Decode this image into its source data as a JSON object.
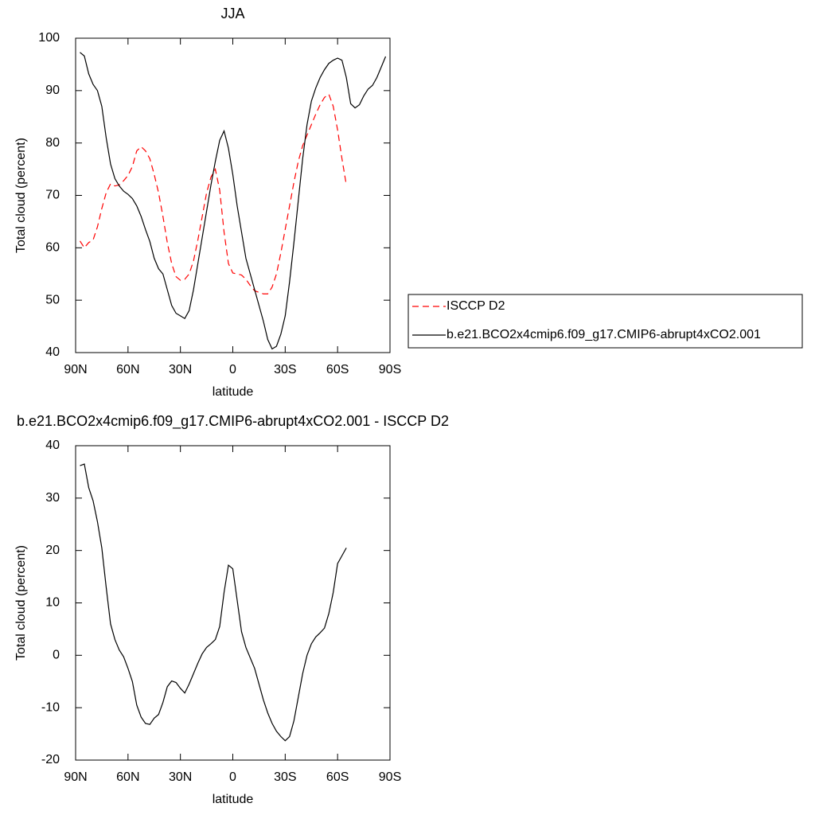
{
  "chart_data": [
    {
      "type": "line",
      "title": "JJA",
      "x_label": "latitude",
      "y_label": "Total cloud (percent)",
      "xlim": [
        90,
        -90
      ],
      "xticks": [
        {
          "value": 90,
          "label": "90N"
        },
        {
          "value": 60,
          "label": "60N"
        },
        {
          "value": 30,
          "label": "30N"
        },
        0,
        {
          "value": -30,
          "label": "30S"
        },
        {
          "value": -60,
          "label": "60S"
        },
        {
          "value": -90,
          "label": "90S"
        }
      ],
      "ylim": [
        40,
        100
      ],
      "yticks": [
        40,
        50,
        60,
        70,
        80,
        90,
        100
      ],
      "legend": "right",
      "series": [
        {
          "name": "ISCCP D2",
          "color": "#ff0000",
          "dashed": true,
          "x": [
            87.5,
            85,
            82.5,
            80,
            77.5,
            75,
            72.5,
            70,
            67.5,
            65,
            62.5,
            60,
            57.5,
            55,
            52.5,
            50,
            47.5,
            45,
            42.5,
            40,
            37.5,
            35,
            32.5,
            30,
            27.5,
            25,
            22.5,
            20,
            17.5,
            15,
            12.5,
            10,
            7.5,
            5,
            2.5,
            0,
            -2.5,
            -5,
            -7.5,
            -10,
            -12.5,
            -15,
            -17.5,
            -20,
            -22.5,
            -25,
            -27.5,
            -30,
            -32.5,
            -35,
            -37.5,
            -40,
            -42.5,
            -45,
            -47.5,
            -50,
            -52.5,
            -55,
            -57.5,
            -60,
            -62.5,
            -65
          ],
          "values": [
            61.3,
            60,
            61,
            61.5,
            64,
            67.5,
            70.5,
            72.2,
            71.8,
            72,
            72.8,
            73.8,
            75.5,
            78.5,
            79.3,
            78.5,
            77,
            74,
            70.5,
            66,
            61,
            57,
            54.5,
            53.8,
            54,
            55,
            57.5,
            61.5,
            66,
            70.5,
            73.5,
            75,
            71,
            63,
            57,
            55.2,
            55,
            54.8,
            54,
            52.8,
            51.8,
            51.5,
            51.2,
            51.2,
            52.5,
            55,
            59,
            63.5,
            68,
            72.5,
            76.5,
            79.5,
            81.5,
            83.5,
            85.5,
            87.3,
            88.7,
            89.3,
            87,
            82.5,
            77,
            72
          ]
        },
        {
          "name": "b.e21.BCO2x4cmip6.f09_g17.CMIP6-abrupt4xCO2.001",
          "color": "#000000",
          "dashed": false,
          "x": [
            87.5,
            85,
            82.5,
            80,
            77.5,
            75,
            72.5,
            70,
            67.5,
            65,
            62.5,
            60,
            57.5,
            55,
            52.5,
            50,
            47.5,
            45,
            42.5,
            40,
            37.5,
            35,
            32.5,
            30,
            27.5,
            25,
            22.5,
            20,
            17.5,
            15,
            12.5,
            10,
            7.5,
            5,
            2.5,
            0,
            -2.5,
            -5,
            -7.5,
            -10,
            -12.5,
            -15,
            -17.5,
            -20,
            -22.5,
            -25,
            -27.5,
            -30,
            -32.5,
            -35,
            -37.5,
            -40,
            -42.5,
            -45,
            -47.5,
            -50,
            -52.5,
            -55,
            -57.5,
            -60,
            -62.5,
            -65,
            -67.5,
            -70,
            -72.5,
            -75,
            -77.5,
            -80,
            -82.5,
            -85,
            -87.5
          ],
          "values": [
            97.3,
            96.6,
            93.2,
            91.2,
            90,
            87,
            81,
            76,
            73.2,
            71.8,
            70.8,
            70.2,
            69.4,
            68,
            66,
            63.5,
            61.2,
            58,
            56,
            55,
            52,
            49,
            47.5,
            47,
            46.5,
            48,
            52,
            57,
            62,
            67,
            72,
            76.5,
            80.5,
            82.3,
            79,
            74,
            68,
            63,
            58,
            55,
            52,
            49,
            46,
            42.5,
            40.7,
            41.2,
            43.5,
            47,
            53.5,
            61,
            69,
            77,
            83.5,
            88,
            90.5,
            92.5,
            94,
            95.2,
            95.8,
            96.2,
            95.8,
            92.5,
            87.5,
            86.7,
            87.3,
            89,
            90.3,
            91,
            92.5,
            94.5,
            96.5
          ]
        }
      ]
    },
    {
      "type": "line",
      "title": "b.e21.BCO2x4cmip6.f09_g17.CMIP6-abrupt4xCO2.001 - ISCCP D2",
      "x_label": "latitude",
      "y_label": "Total cloud (percent)",
      "xlim": [
        90,
        -90
      ],
      "xticks": [
        {
          "value": 90,
          "label": "90N"
        },
        {
          "value": 60,
          "label": "60N"
        },
        {
          "value": 30,
          "label": "30N"
        },
        0,
        {
          "value": -30,
          "label": "30S"
        },
        {
          "value": -60,
          "label": "60S"
        },
        {
          "value": -90,
          "label": "90S"
        }
      ],
      "ylim": [
        -20,
        40
      ],
      "yticks": [
        -20,
        -10,
        0,
        10,
        20,
        30,
        40
      ],
      "series": [
        {
          "color": "#000000",
          "dashed": false,
          "x": [
            87.5,
            85,
            82.5,
            80,
            77.5,
            75,
            72.5,
            70,
            67.5,
            65,
            62.5,
            60,
            57.5,
            55,
            52.5,
            50,
            47.5,
            45,
            42.5,
            40,
            37.5,
            35,
            32.5,
            30,
            27.5,
            25,
            22.5,
            20,
            17.5,
            15,
            12.5,
            10,
            7.5,
            5,
            2.5,
            0,
            -2.5,
            -5,
            -7.5,
            -10,
            -12.5,
            -15,
            -17.5,
            -20,
            -22.5,
            -25,
            -27.5,
            -30,
            -32.5,
            -35,
            -37.5,
            -40,
            -42.5,
            -45,
            -47.5,
            -50,
            -52.5,
            -55,
            -57.5,
            -60,
            -62.5,
            -65
          ],
          "values": [
            36.2,
            36.5,
            32,
            29.5,
            25.5,
            20.5,
            13,
            6,
            3,
            1,
            -0.3,
            -2.5,
            -5,
            -9.5,
            -11.8,
            -13,
            -13.2,
            -12,
            -11.3,
            -9,
            -6,
            -4.9,
            -5.2,
            -6.3,
            -7.2,
            -5.5,
            -3.5,
            -1.5,
            0.3,
            1.5,
            2.2,
            3,
            5.5,
            12,
            17.2,
            16.5,
            10.5,
            4.5,
            1.5,
            -0.5,
            -2.5,
            -5.5,
            -8.5,
            -11,
            -13,
            -14.5,
            -15.5,
            -16.3,
            -15.5,
            -12.5,
            -8,
            -3.5,
            0,
            2.2,
            3.5,
            4.3,
            5.2,
            8,
            12,
            17.5,
            19,
            20.5
          ]
        }
      ]
    }
  ]
}
